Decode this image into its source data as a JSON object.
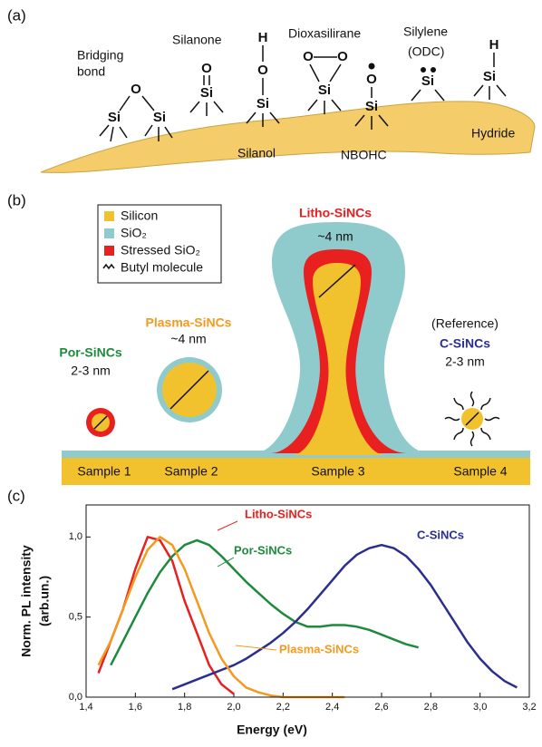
{
  "panel_a": {
    "label": "(a)",
    "bridging_bond": [
      "Bridging",
      "bond"
    ],
    "silanone": "Silanone",
    "silanol": "Silanol",
    "dioxasilirane": "Dioxasilirane",
    "silylene": [
      "Silylene",
      "(ODC)"
    ],
    "nbohc": "NBOHC",
    "hydride": "Hydride",
    "atoms": [
      "O",
      "Si",
      "Si",
      "O",
      "Si",
      "H",
      "O",
      "Si",
      "O",
      "O",
      "Si",
      "O",
      "Si",
      "Si",
      "H",
      "Si"
    ]
  },
  "panel_b": {
    "label": "(b)",
    "legend": [
      "Silicon",
      "SiO₂",
      "Stressed SiO₂",
      "Butyl molecule"
    ],
    "samples": [
      "Sample 1",
      "Sample 2",
      "Sample 3",
      "Sample 4"
    ],
    "litho": {
      "name": "Litho-SiNCs",
      "size": "~4 nm"
    },
    "plasma": {
      "name": "Plasma-SiNCs",
      "size": "~4 nm"
    },
    "por": {
      "name": "Por-SiNCs",
      "size": "2-3 nm"
    },
    "reference": {
      "note": "(Reference)",
      "name": "C-SiNCs",
      "size": "2-3 nm"
    }
  },
  "chart_data": {
    "type": "line",
    "panel_label": "(c)",
    "x_label": "Energy (eV)",
    "y_label": [
      "Norm. PL intensity",
      "(arb.un.)"
    ],
    "xlim": [
      1.4,
      3.2
    ],
    "ylim": [
      0,
      1.2
    ],
    "xticks": [
      {
        "value": 1.4,
        "label": "1,4"
      },
      {
        "value": 1.6,
        "label": "1,6"
      },
      {
        "value": 1.8,
        "label": "1,8"
      },
      {
        "value": 2.0,
        "label": "2,0"
      },
      {
        "value": 2.2,
        "label": "2,2"
      },
      {
        "value": 2.4,
        "label": "2,4"
      },
      {
        "value": 2.6,
        "label": "2,6"
      },
      {
        "value": 2.8,
        "label": "2,8"
      },
      {
        "value": 3.0,
        "label": "3,0"
      },
      {
        "value": 3.2,
        "label": "3,2"
      }
    ],
    "yticks": [
      {
        "value": 0,
        "label": "0,0"
      },
      {
        "value": 0.5,
        "label": "0,5"
      },
      {
        "value": 1.0,
        "label": "1,0"
      }
    ],
    "x": [
      1.4,
      1.45,
      1.5,
      1.55,
      1.6,
      1.65,
      1.7,
      1.75,
      1.8,
      1.85,
      1.9,
      1.95,
      2.0,
      2.05,
      2.1,
      2.15,
      2.2,
      2.25,
      2.3,
      2.35,
      2.4,
      2.45,
      2.5,
      2.55,
      2.6,
      2.65,
      2.7,
      2.75,
      2.8,
      2.85,
      2.9,
      2.95,
      3.0,
      3.05,
      3.1,
      3.15
    ],
    "series": [
      {
        "name": "Litho-SiNCs",
        "color": "#e8201f",
        "values": [
          null,
          0.15,
          0.35,
          0.55,
          0.8,
          1.0,
          0.98,
          0.85,
          0.6,
          0.4,
          0.2,
          0.08,
          0.02,
          null,
          null,
          null,
          null,
          null,
          null,
          null,
          null,
          null,
          null,
          null,
          null,
          null,
          null,
          null,
          null,
          null,
          null,
          null,
          null,
          null,
          null,
          null
        ]
      },
      {
        "name": "Por-SiNCs",
        "color": "#1e8a3c",
        "values": [
          null,
          null,
          0.2,
          0.35,
          0.5,
          0.65,
          0.78,
          0.88,
          0.95,
          0.98,
          0.95,
          0.88,
          0.8,
          0.72,
          0.65,
          0.58,
          0.52,
          0.47,
          0.44,
          0.44,
          0.45,
          0.45,
          0.44,
          0.42,
          0.39,
          0.36,
          0.33,
          0.31,
          null,
          null,
          null,
          null,
          null,
          null,
          null,
          null
        ]
      },
      {
        "name": "C-SiNCs",
        "color": "#2a2f8f",
        "values": [
          null,
          null,
          null,
          null,
          null,
          null,
          null,
          0.05,
          0.08,
          0.11,
          0.14,
          0.17,
          0.2,
          0.24,
          0.29,
          0.34,
          0.4,
          0.47,
          0.55,
          0.64,
          0.73,
          0.82,
          0.89,
          0.93,
          0.95,
          0.93,
          0.88,
          0.8,
          0.7,
          0.58,
          0.46,
          0.34,
          0.24,
          0.16,
          0.1,
          0.06
        ]
      },
      {
        "name": "Plasma-SiNCs",
        "color": "#f39a1f",
        "values": [
          null,
          0.2,
          0.35,
          0.55,
          0.75,
          0.92,
          1.0,
          0.95,
          0.8,
          0.6,
          0.4,
          0.24,
          0.13,
          0.06,
          0.03,
          0.01,
          0,
          0,
          0,
          0,
          0,
          0,
          null,
          null,
          null,
          null,
          null,
          null,
          null,
          null,
          null,
          null,
          null,
          null,
          null,
          null
        ]
      }
    ]
  }
}
